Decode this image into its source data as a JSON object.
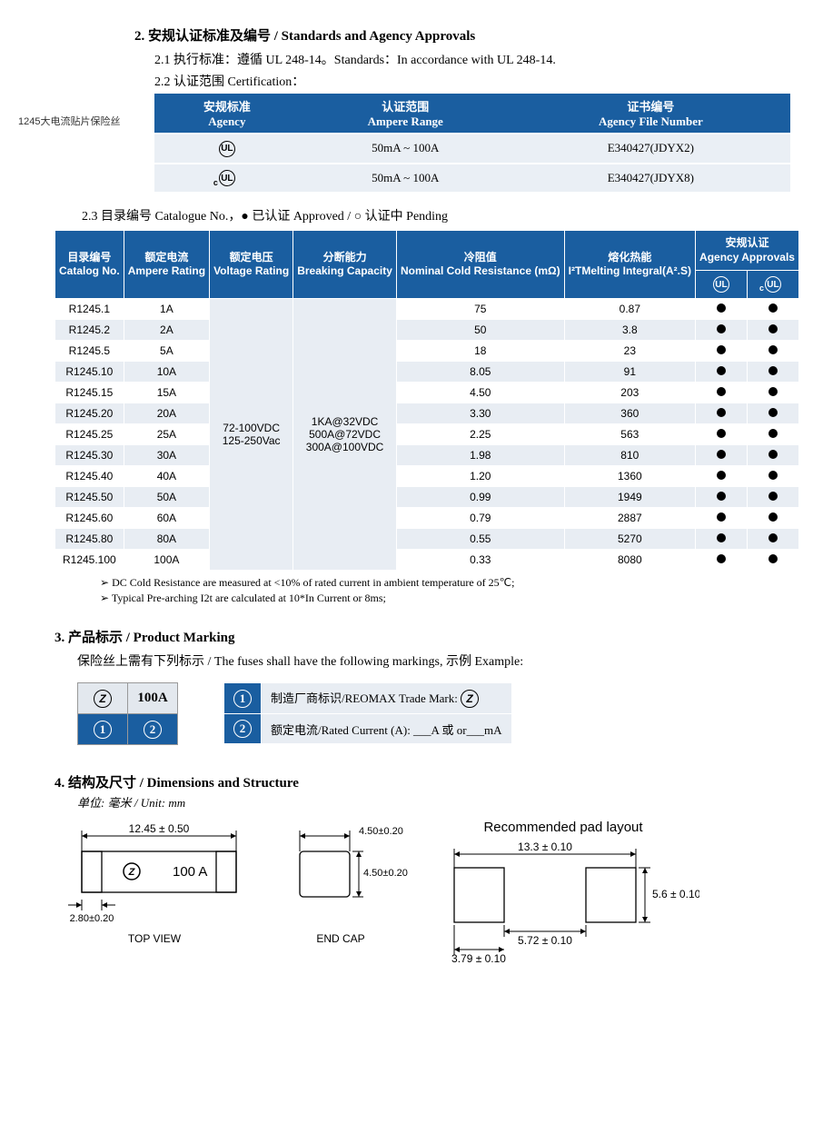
{
  "side_label": "1245大电流贴片保险丝",
  "section2": {
    "heading": "2.  安规认证标准及编号  / Standards and Agency Approvals",
    "line21": "2.1 执行标准：遵循 UL 248-14。Standards：In accordance with UL 248-14.",
    "line22": "2.2 认证范围  Certification：",
    "cert_headers": {
      "agency_cn": "安规标准",
      "agency_en": "Agency",
      "range_cn": "认证范围",
      "range_en": "Ampere Range",
      "file_cn": "证书编号",
      "file_en": "Agency File Number"
    },
    "cert_rows": [
      {
        "agency": "UL",
        "range": "50mA ~ 100A",
        "file": "E340427(JDYX2)"
      },
      {
        "agency": "cUL",
        "range": "50mA ~ 100A",
        "file": "E340427(JDYX8)"
      }
    ]
  },
  "section23": {
    "heading": "2.3  目录编号  Catalogue No.，● 已认证 Approved / ○ 认证中 Pending",
    "headers": {
      "cat_cn": "目录编号",
      "cat_en": "Catalog No.",
      "amp_cn": "额定电流",
      "amp_en": "Ampere Rating",
      "volt_cn": "额定电压",
      "volt_en": "Voltage Rating",
      "break_cn": "分断能力",
      "break_en": "Breaking Capacity",
      "cold_cn": "冷阻值",
      "cold_en": "Nominal Cold Resistance (mΩ)",
      "melt_cn": "熔化热能",
      "melt_en": "I²TMelting Integral(A².S)",
      "appr_cn": "安规认证",
      "appr_en": "Agency Approvals"
    },
    "voltage_merged": "72-100VDC\n125-250Vac",
    "breaking_merged": "1KA@32VDC\n500A@72VDC\n300A@100VDC",
    "rows": [
      {
        "cat": "R1245.1",
        "amp": "1A",
        "cold": "75",
        "melt": "0.87",
        "ul": "●",
        "cul": "●"
      },
      {
        "cat": "R1245.2",
        "amp": "2A",
        "cold": "50",
        "melt": "3.8",
        "ul": "●",
        "cul": "●"
      },
      {
        "cat": "R1245.5",
        "amp": "5A",
        "cold": "18",
        "melt": "23",
        "ul": "●",
        "cul": "●"
      },
      {
        "cat": "R1245.10",
        "amp": "10A",
        "cold": "8.05",
        "melt": "91",
        "ul": "●",
        "cul": "●"
      },
      {
        "cat": "R1245.15",
        "amp": "15A",
        "cold": "4.50",
        "melt": "203",
        "ul": "●",
        "cul": "●"
      },
      {
        "cat": "R1245.20",
        "amp": "20A",
        "cold": "3.30",
        "melt": "360",
        "ul": "●",
        "cul": "●"
      },
      {
        "cat": "R1245.25",
        "amp": "25A",
        "cold": "2.25",
        "melt": "563",
        "ul": "●",
        "cul": "●"
      },
      {
        "cat": "R1245.30",
        "amp": "30A",
        "cold": "1.98",
        "melt": "810",
        "ul": "●",
        "cul": "●"
      },
      {
        "cat": "R1245.40",
        "amp": "40A",
        "cold": "1.20",
        "melt": "1360",
        "ul": "●",
        "cul": "●"
      },
      {
        "cat": "R1245.50",
        "amp": "50A",
        "cold": "0.99",
        "melt": "1949",
        "ul": "●",
        "cul": "●"
      },
      {
        "cat": "R1245.60",
        "amp": "60A",
        "cold": "0.79",
        "melt": "2887",
        "ul": "●",
        "cul": "●"
      },
      {
        "cat": "R1245.80",
        "amp": "80A",
        "cold": "0.55",
        "melt": "5270",
        "ul": "●",
        "cul": "●"
      },
      {
        "cat": "R1245.100",
        "amp": "100A",
        "cold": "0.33",
        "melt": "8080",
        "ul": "●",
        "cul": "●"
      }
    ],
    "notes": [
      "DC Cold Resistance are measured at <10% of rated current in ambient temperature of 25℃;",
      "Typical Pre-arching I2t are calculated at 10*In Current or 8ms;"
    ]
  },
  "section3": {
    "heading": "3.  产品标示  / Product Marking",
    "sub": "保险丝上需有下列标示  / The fuses shall have the following markings,  示例 Example:",
    "example_value": "100A",
    "legend": [
      {
        "n": "①",
        "txt": "制造厂商标识/REOMAX Trade Mark:  "
      },
      {
        "n": "②",
        "txt": "额定电流/Rated Current (A):  ___A  或 or___mA"
      }
    ]
  },
  "section4": {
    "heading": "4.  结构及尺寸  / Dimensions and Structure",
    "unit": "单位: 毫米 / Unit: mm",
    "pad_title": "Recommended pad layout",
    "dims": {
      "top_len": "12.45 ± 0.50",
      "cap_w": "2.80±0.20",
      "body_mark": "Ⓩ 100 A",
      "top_label": "TOP VIEW",
      "end_w": "4.50±0.20",
      "end_h": "4.50±0.20",
      "end_label": "END CAP",
      "pad_total": "13.3 ± 0.10",
      "pad_gap": "5.72 ± 0.10",
      "pad_w": "3.79 ± 0.10",
      "pad_h": "5.6 ± 0.10"
    }
  },
  "colors": {
    "header_blue": "#1a5ea0",
    "row_alt": "#e8edf3",
    "row_light": "#eaeff5"
  }
}
